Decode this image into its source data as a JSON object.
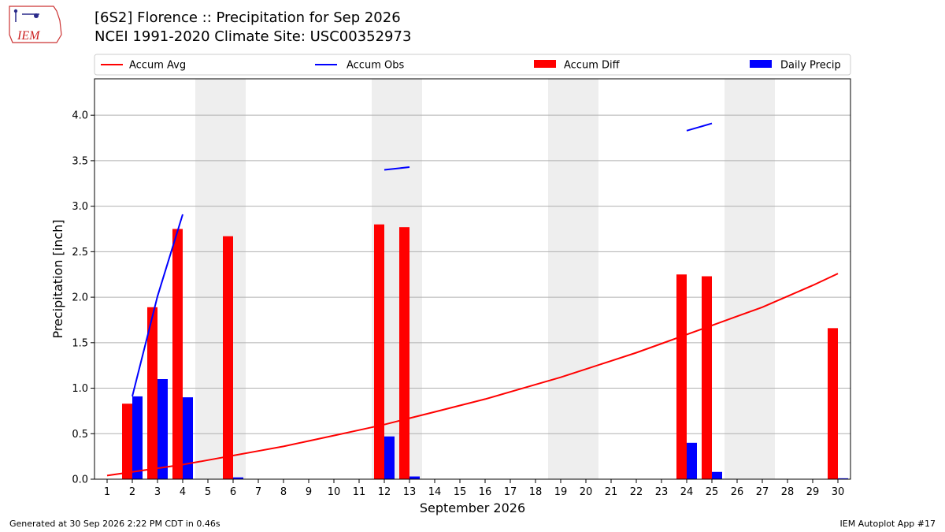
{
  "header": {
    "title_line1": "[6S2] Florence :: Precipitation for Sep 2026",
    "title_line2": "NCEI 1991-2020 Climate Site: USC00352973",
    "logo_text": "IEM"
  },
  "footer": {
    "left": "Generated at 30 Sep 2026 2:22 PM CDT in 0.46s",
    "right": "IEM Autoplot App #17"
  },
  "colors": {
    "accum_avg": "#ff0000",
    "accum_obs": "#0000ff",
    "accum_diff": "#ff0000",
    "daily_precip": "#0000ff",
    "weekend_shade": "#eeeeee",
    "grid": "#b0b0b0"
  },
  "chart_data": {
    "type": "bar",
    "xlabel": "September 2026",
    "ylabel": "Precipitation [inch]",
    "ylim": [
      0,
      4.4
    ],
    "yticks": [
      "0.0",
      "0.5",
      "1.0",
      "1.5",
      "2.0",
      "2.5",
      "3.0",
      "3.5",
      "4.0"
    ],
    "categories": [
      "1",
      "2",
      "3",
      "4",
      "5",
      "6",
      "7",
      "8",
      "9",
      "10",
      "11",
      "12",
      "13",
      "14",
      "15",
      "16",
      "17",
      "18",
      "19",
      "20",
      "21",
      "22",
      "23",
      "24",
      "25",
      "26",
      "27",
      "28",
      "29",
      "30"
    ],
    "weekend_days": [
      [
        5,
        6
      ],
      [
        12,
        13
      ],
      [
        19,
        20
      ],
      [
        26,
        27
      ]
    ],
    "legend": {
      "position": "top",
      "entries": [
        "Accum Avg",
        "Accum Obs",
        "Accum Diff",
        "Daily Precip"
      ]
    },
    "series": [
      {
        "name": "Accum Avg",
        "kind": "line",
        "values": [
          0.04,
          0.08,
          0.12,
          0.16,
          0.21,
          0.26,
          0.31,
          0.36,
          0.42,
          0.48,
          0.54,
          0.6,
          0.67,
          0.74,
          0.81,
          0.88,
          0.96,
          1.04,
          1.12,
          1.21,
          1.3,
          1.39,
          1.49,
          1.59,
          1.69,
          1.79,
          1.89,
          2.01,
          2.13,
          2.26
        ]
      },
      {
        "name": "Accum Obs",
        "kind": "line",
        "values": [
          null,
          0.91,
          2.01,
          2.91,
          null,
          null,
          null,
          null,
          null,
          null,
          null,
          3.4,
          3.43,
          null,
          null,
          null,
          null,
          null,
          null,
          null,
          null,
          null,
          null,
          3.83,
          3.91,
          null,
          null,
          null,
          null,
          null
        ]
      },
      {
        "name": "Accum Diff",
        "kind": "bar",
        "values": [
          0,
          0.83,
          1.89,
          2.75,
          0,
          2.67,
          0,
          0,
          0,
          0,
          0,
          2.8,
          2.77,
          0,
          0,
          0,
          0,
          0,
          0,
          0,
          0,
          0,
          0,
          2.25,
          2.23,
          0,
          0,
          0,
          0,
          1.66
        ]
      },
      {
        "name": "Daily Precip",
        "kind": "bar",
        "values": [
          0,
          0.91,
          1.1,
          0.9,
          0,
          0.02,
          0,
          0,
          0,
          0,
          0,
          0.47,
          0.03,
          0,
          0,
          0,
          0,
          0,
          0,
          0,
          0,
          0,
          0,
          0.4,
          0.08,
          0,
          0,
          0,
          0,
          0.01
        ]
      }
    ]
  }
}
